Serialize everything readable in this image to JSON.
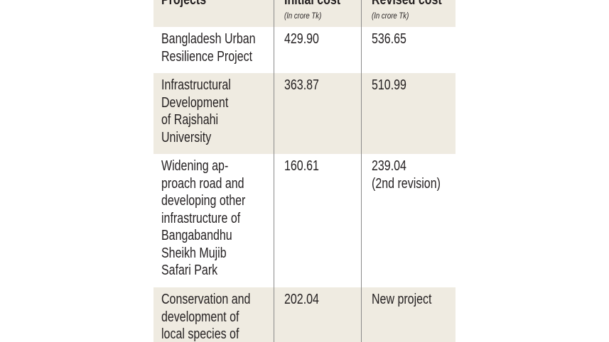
{
  "table": {
    "header": [
      {
        "title": "Projects"
      },
      {
        "title": "Initial cost",
        "subtitle": "(In crore Tk)"
      },
      {
        "title": "Revised cost",
        "subtitle": "(In crore Tk)"
      }
    ],
    "rows": [
      [
        [
          "Bangladesh Urban",
          "Resilience Project"
        ],
        [
          "429.90"
        ],
        [
          "536.65"
        ]
      ],
      [
        [
          "Infrastructural",
          "Development",
          "of Rajshahi",
          "University"
        ],
        [
          "363.87"
        ],
        [
          "510.99"
        ]
      ],
      [
        [
          "Widening ap-",
          "proach road and",
          "developing other",
          "infrastructure of",
          "Bangabandhu",
          "Sheikh Mujib",
          "Safari Park"
        ],
        [
          "160.61"
        ],
        [
          "239.04",
          "(2nd revision)"
        ]
      ],
      [
        [
          "Conservation and",
          "development of",
          "local species of"
        ],
        [
          "202.04"
        ],
        [
          "New project"
        ]
      ]
    ]
  }
}
